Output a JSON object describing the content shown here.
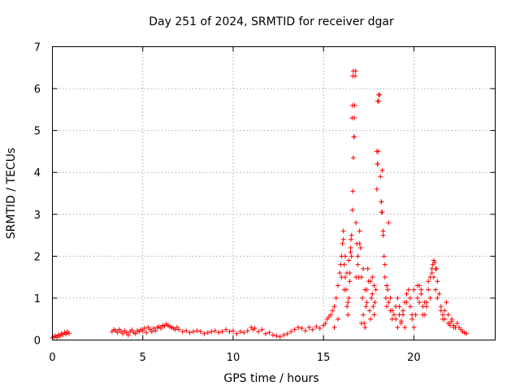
{
  "chart_data": {
    "type": "scatter",
    "title": "Day 251 of 2024, SRMTID for receiver dgar",
    "xlabel": "GPS time / hours",
    "ylabel": "SRMTID / TECUs",
    "xlim": [
      0,
      24.5
    ],
    "ylim": [
      0,
      7
    ],
    "xticks": [
      0,
      5,
      10,
      15,
      20
    ],
    "yticks": [
      0,
      1,
      2,
      3,
      4,
      5,
      6,
      7
    ],
    "grid": true,
    "marker": "+",
    "series": [
      {
        "name": "SRMTID",
        "color": "#ff0000",
        "x": [
          0.0,
          0.08,
          0.17,
          0.25,
          0.33,
          0.42,
          0.5,
          0.58,
          0.67,
          0.75,
          0.83,
          0.92,
          3.3,
          3.4,
          3.5,
          3.6,
          3.7,
          3.8,
          3.9,
          4.0,
          4.1,
          4.2,
          4.3,
          4.4,
          4.5,
          4.6,
          4.7,
          4.8,
          4.9,
          5.0,
          5.1,
          5.2,
          5.3,
          5.4,
          5.5,
          5.6,
          5.7,
          5.8,
          5.9,
          6.0,
          6.1,
          6.2,
          6.3,
          6.4,
          6.5,
          6.6,
          6.7,
          6.8,
          6.9,
          7.0,
          7.2,
          7.4,
          7.6,
          7.8,
          8.0,
          8.2,
          8.4,
          8.6,
          8.8,
          9.0,
          9.2,
          9.4,
          9.6,
          9.8,
          10.0,
          10.2,
          10.4,
          10.6,
          10.8,
          11.0,
          11.1,
          11.2,
          11.4,
          11.6,
          11.8,
          12.0,
          12.2,
          12.4,
          12.6,
          12.8,
          13.0,
          13.2,
          13.4,
          13.6,
          13.8,
          14.0,
          14.2,
          14.4,
          14.6,
          14.8,
          15.0,
          15.1,
          15.2,
          15.3,
          15.4,
          15.5,
          15.6,
          15.7,
          15.8,
          15.9,
          16.0,
          16.05,
          16.1,
          16.15,
          16.2,
          16.25,
          16.3,
          16.35,
          16.4,
          16.45,
          16.5,
          16.55,
          16.6,
          16.62,
          16.65,
          16.68,
          16.7,
          16.72,
          16.75,
          16.78,
          16.8,
          16.85,
          16.9,
          16.95,
          17.0,
          17.05,
          17.1,
          17.15,
          17.2,
          17.25,
          17.3,
          17.35,
          17.4,
          17.45,
          17.5,
          17.55,
          17.6,
          17.65,
          17.7,
          17.75,
          17.8,
          17.85,
          17.9,
          17.95,
          18.0,
          18.02,
          18.05,
          18.1,
          18.15,
          18.2,
          18.25,
          18.3,
          18.35,
          18.4,
          18.45,
          18.5,
          18.55,
          18.6,
          18.7,
          18.8,
          18.9,
          19.0,
          19.1,
          19.2,
          19.3,
          19.4,
          19.5,
          19.6,
          19.7,
          19.8,
          19.9,
          20.0,
          20.1,
          20.2,
          20.3,
          20.4,
          20.5,
          20.6,
          20.7,
          20.8,
          20.9,
          21.0,
          21.05,
          21.1,
          21.15,
          21.2,
          21.3,
          21.4,
          21.5,
          21.6,
          21.7,
          21.8,
          21.9,
          22.0,
          22.1,
          22.2,
          22.3,
          22.4,
          22.5,
          22.6,
          22.7,
          22.8,
          22.9,
          16.62,
          16.65,
          16.6,
          16.58,
          16.7,
          18.05,
          18.0,
          18.25,
          17.95,
          17.98,
          18.2,
          18.22,
          18.3,
          18.6,
          15.95,
          16.0,
          16.1,
          16.2,
          16.3,
          16.4,
          16.5,
          16.52,
          16.8,
          16.9,
          17.0,
          17.2,
          17.3,
          17.4,
          17.6,
          17.7,
          18.4,
          18.5,
          18.7,
          18.8,
          19.0,
          19.2,
          19.4,
          19.6,
          19.8,
          20.0,
          20.2,
          20.4,
          20.6,
          20.8,
          21.0,
          21.1,
          21.2,
          21.3,
          21.5,
          21.7,
          21.9,
          22.1,
          22.3,
          15.6,
          15.8,
          16.15,
          16.35,
          16.45,
          16.55,
          17.1,
          17.8,
          19.1,
          19.3,
          19.5,
          19.9,
          20.3,
          20.5,
          20.7,
          20.9,
          21.25,
          21.6,
          22.0,
          22.2
        ],
        "y": [
          0.05,
          0.08,
          0.1,
          0.06,
          0.12,
          0.09,
          0.15,
          0.13,
          0.18,
          0.14,
          0.2,
          0.16,
          0.2,
          0.25,
          0.22,
          0.18,
          0.25,
          0.2,
          0.15,
          0.22,
          0.18,
          0.12,
          0.2,
          0.24,
          0.18,
          0.15,
          0.22,
          0.2,
          0.25,
          0.22,
          0.28,
          0.18,
          0.3,
          0.25,
          0.2,
          0.28,
          0.22,
          0.3,
          0.32,
          0.28,
          0.35,
          0.33,
          0.38,
          0.35,
          0.32,
          0.3,
          0.28,
          0.25,
          0.3,
          0.25,
          0.2,
          0.22,
          0.18,
          0.2,
          0.22,
          0.2,
          0.15,
          0.18,
          0.2,
          0.22,
          0.18,
          0.2,
          0.25,
          0.2,
          0.22,
          0.15,
          0.2,
          0.18,
          0.22,
          0.3,
          0.25,
          0.28,
          0.2,
          0.25,
          0.15,
          0.18,
          0.12,
          0.1,
          0.08,
          0.12,
          0.15,
          0.2,
          0.25,
          0.3,
          0.28,
          0.22,
          0.3,
          0.25,
          0.32,
          0.28,
          0.35,
          0.4,
          0.5,
          0.55,
          0.6,
          0.7,
          0.8,
          1.0,
          1.3,
          1.6,
          2.0,
          2.3,
          2.6,
          1.8,
          1.5,
          1.2,
          0.8,
          0.6,
          1.0,
          1.4,
          2.2,
          2.5,
          3.1,
          3.55,
          4.35,
          4.85,
          5.3,
          5.6,
          6.3,
          6.42,
          2.8,
          2.3,
          1.8,
          1.5,
          2.6,
          2.2,
          1.5,
          1.0,
          0.6,
          0.4,
          0.3,
          0.8,
          1.2,
          1.7,
          1.4,
          0.7,
          0.5,
          1.0,
          1.5,
          0.8,
          0.6,
          0.9,
          1.2,
          3.6,
          4.2,
          4.5,
          5.7,
          5.85,
          3.9,
          3.3,
          3.05,
          2.5,
          2.0,
          1.5,
          1.0,
          0.8,
          1.2,
          0.9,
          0.7,
          0.5,
          0.6,
          0.8,
          1.0,
          0.6,
          0.4,
          0.7,
          0.9,
          1.1,
          1.2,
          0.8,
          0.5,
          0.3,
          0.6,
          1.0,
          1.3,
          1.2,
          0.8,
          0.6,
          0.9,
          1.2,
          1.5,
          1.7,
          1.8,
          1.9,
          1.85,
          1.7,
          1.4,
          1.1,
          0.8,
          0.6,
          0.7,
          0.9,
          0.6,
          0.4,
          0.5,
          0.35,
          0.3,
          0.4,
          0.3,
          0.25,
          0.2,
          0.18,
          0.15,
          6.3,
          6.42,
          5.6,
          5.3,
          4.85,
          5.85,
          5.7,
          4.05,
          4.5,
          4.2,
          3.3,
          3.05,
          2.6,
          2.8,
          1.8,
          1.5,
          2.4,
          2.0,
          1.6,
          1.9,
          2.1,
          2.4,
          1.5,
          2.0,
          2.3,
          1.7,
          1.2,
          0.9,
          1.4,
          1.1,
          1.8,
          1.3,
          1.0,
          0.7,
          0.5,
          0.8,
          0.6,
          0.9,
          1.0,
          1.2,
          1.3,
          1.1,
          0.9,
          1.4,
          1.6,
          1.5,
          1.2,
          1.0,
          0.7,
          0.5,
          0.4,
          0.45,
          0.3,
          0.3,
          0.5,
          1.2,
          0.9,
          1.6,
          2.0,
          0.4,
          1.3,
          0.3,
          0.45,
          0.3,
          0.6,
          0.9,
          0.6,
          0.8,
          1.0,
          1.7,
          0.5,
          0.35,
          0.3
        ]
      }
    ]
  }
}
